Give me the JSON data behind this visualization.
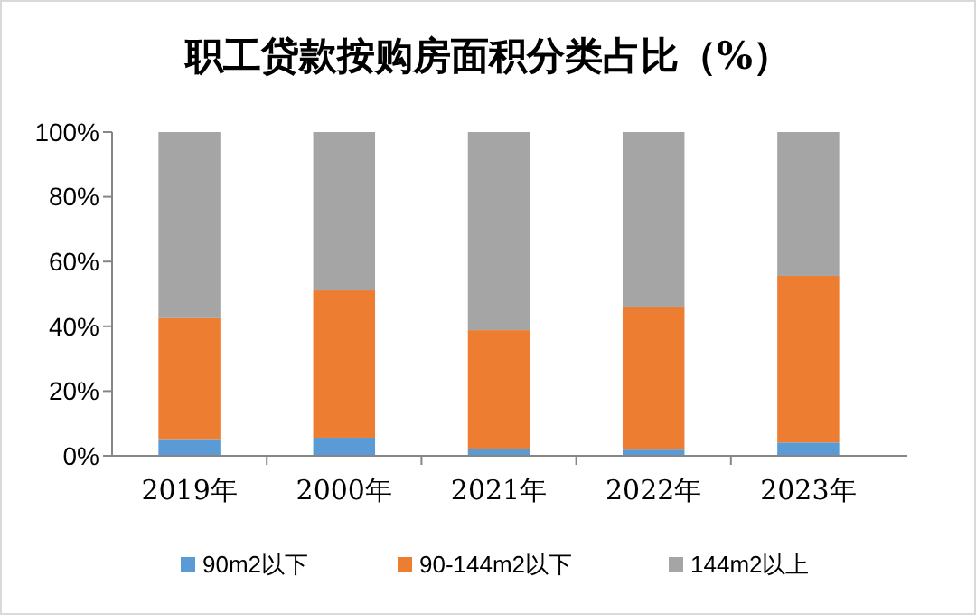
{
  "chart_data": {
    "type": "bar",
    "title": "职工贷款按购房面积分类占比（%）",
    "categories": [
      "2019年",
      "2000年",
      "2021年",
      "2022年",
      "2023年"
    ],
    "stacked": true,
    "ylim": [
      0,
      100
    ],
    "yticks": [
      {
        "value": 0,
        "label": "0%"
      },
      {
        "value": 20,
        "label": "20%"
      },
      {
        "value": 40,
        "label": "40%"
      },
      {
        "value": 60,
        "label": "60%"
      },
      {
        "value": 80,
        "label": "80%"
      },
      {
        "value": 100,
        "label": "100%"
      }
    ],
    "grid": false,
    "legend": "bottom",
    "series": [
      {
        "name": "90m2以下",
        "color": "#5b9bd5",
        "values": [
          5.2,
          5.6,
          2.2,
          1.9,
          4.1
        ]
      },
      {
        "name": "90-144m2以下",
        "color": "#ed7d31",
        "values": [
          37.3,
          45.5,
          36.6,
          44.2,
          51.5
        ]
      },
      {
        "name": "144m2以上",
        "color": "#a5a5a5",
        "values": [
          57.5,
          48.9,
          61.2,
          53.9,
          44.4
        ]
      }
    ]
  }
}
